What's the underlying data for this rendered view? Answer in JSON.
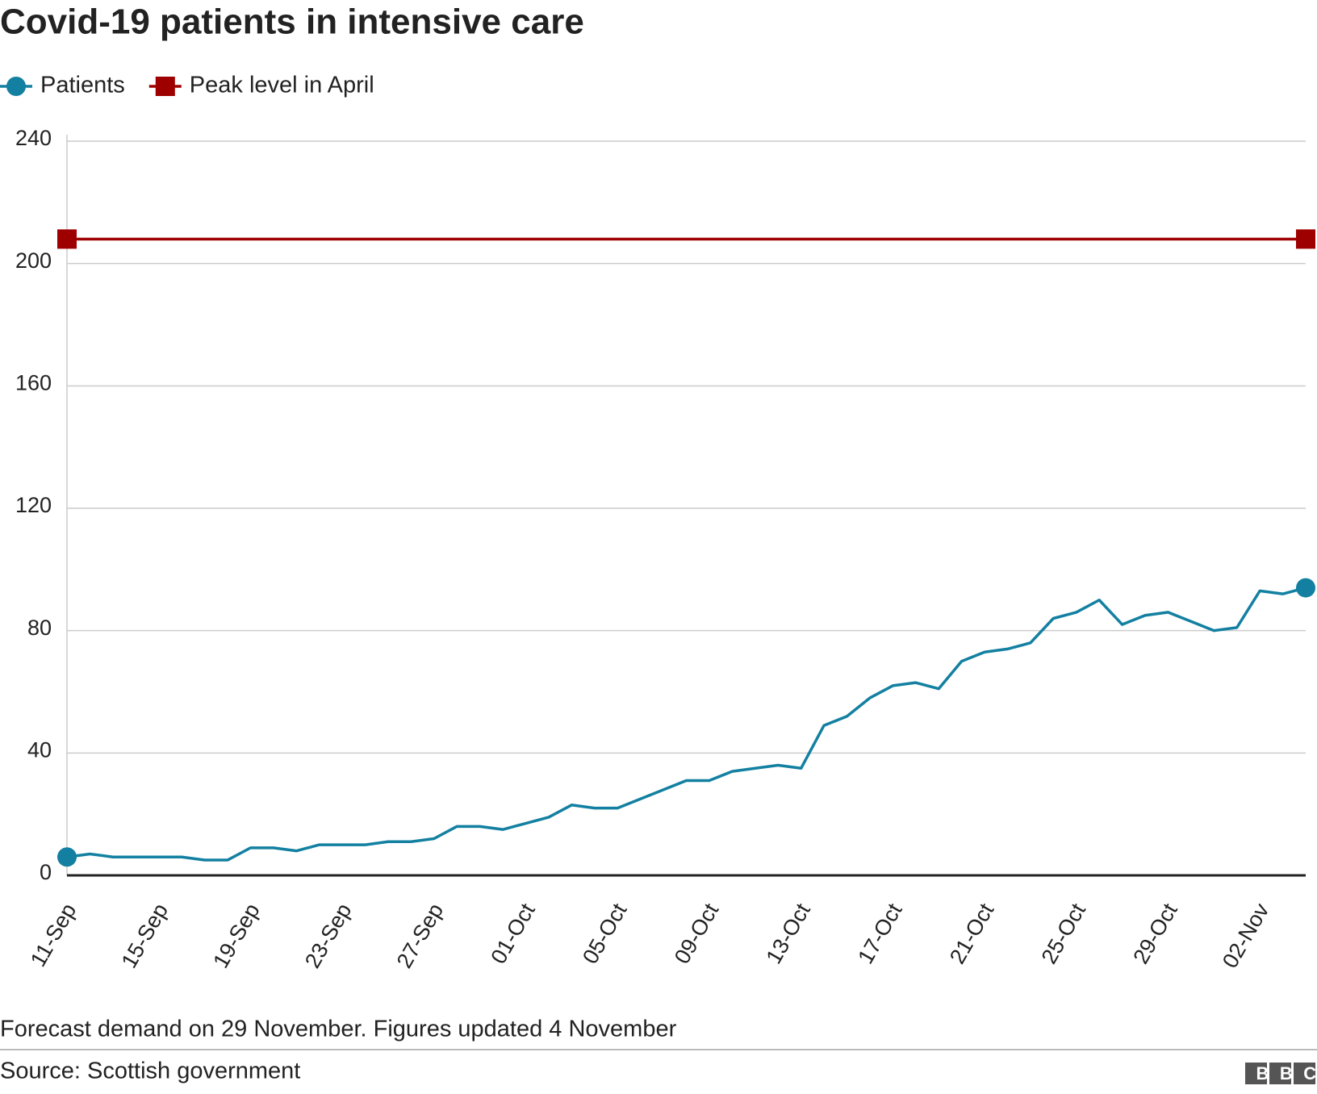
{
  "chart_data": {
    "type": "line",
    "title": "Covid-19 patients in intensive care",
    "note": "Forecast demand on 29 November. Figures updated 4 November",
    "source": "Source: Scottish government",
    "logo": "BBC",
    "categories": [
      "11-Sep",
      null,
      null,
      null,
      "15-Sep",
      null,
      null,
      null,
      "19-Sep",
      null,
      null,
      null,
      "23-Sep",
      null,
      null,
      null,
      "27-Sep",
      null,
      null,
      null,
      "01-Oct",
      null,
      null,
      null,
      "05-Oct",
      null,
      null,
      null,
      "09-Oct",
      null,
      null,
      null,
      "13-Oct",
      null,
      null,
      null,
      "17-Oct",
      null,
      null,
      null,
      "21-Oct",
      null,
      null,
      null,
      "25-Oct",
      null,
      null,
      null,
      "29-Oct",
      null,
      null,
      null,
      "02-Nov",
      null,
      null
    ],
    "series": [
      {
        "name": "Patients",
        "color": "#1380a1",
        "marker": "circle",
        "values": [
          6,
          7,
          6,
          6,
          6,
          6,
          5,
          5,
          9,
          9,
          8,
          10,
          10,
          10,
          11,
          11,
          12,
          16,
          16,
          15,
          17,
          19,
          23,
          22,
          22,
          25,
          28,
          31,
          31,
          34,
          35,
          36,
          35,
          49,
          52,
          58,
          62,
          63,
          61,
          70,
          73,
          74,
          76,
          84,
          86,
          90,
          82,
          85,
          86,
          83,
          80,
          81,
          93,
          92,
          94
        ]
      },
      {
        "name": "Peak level in April",
        "color": "#9e0000",
        "marker": "square",
        "values": [
          208,
          208,
          208,
          208,
          208,
          208,
          208,
          208,
          208,
          208,
          208,
          208,
          208,
          208,
          208,
          208,
          208,
          208,
          208,
          208,
          208,
          208,
          208,
          208,
          208,
          208,
          208,
          208,
          208,
          208,
          208,
          208,
          208,
          208,
          208,
          208,
          208,
          208,
          208,
          208,
          208,
          208,
          208,
          208,
          208,
          208,
          208,
          208,
          208,
          208,
          208,
          208,
          208,
          208,
          208
        ]
      }
    ],
    "ylim": [
      0,
      240
    ],
    "yticks": [
      0,
      40,
      80,
      120,
      160,
      200,
      240
    ],
    "grid": true
  }
}
